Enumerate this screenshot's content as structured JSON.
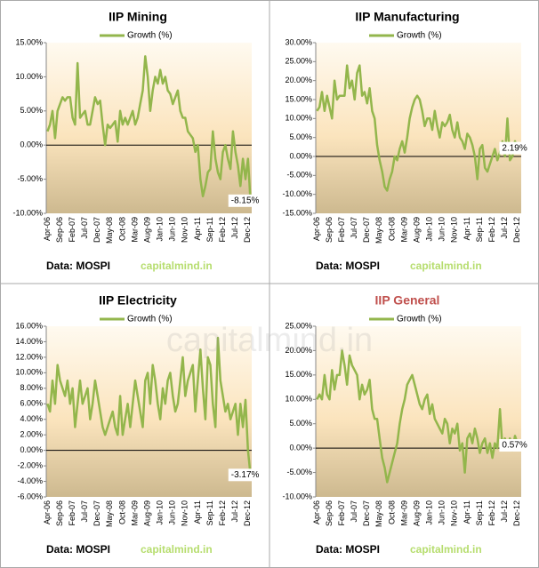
{
  "watermark": "capitalmind.in",
  "chart_data": [
    {
      "type": "line",
      "title": "IIP Mining",
      "title_color": "#000000",
      "source": "Data: MOSPI",
      "brand": "capitalmind.in",
      "annotation": "-8.15%",
      "categories": [
        "Apr-06",
        null,
        null,
        null,
        null,
        "Sep-06",
        null,
        null,
        null,
        null,
        "Feb-07",
        null,
        null,
        null,
        null,
        "Jul-07",
        null,
        null,
        null,
        null,
        "Dec-07",
        null,
        null,
        null,
        null,
        "May-08",
        null,
        null,
        null,
        null,
        "Oct-08",
        null,
        null,
        null,
        null,
        "Mar-09",
        null,
        null,
        null,
        null,
        "Aug-09",
        null,
        null,
        null,
        null,
        "Jan-10",
        null,
        null,
        null,
        null,
        "Jun-10",
        null,
        null,
        null,
        null,
        "Nov-10",
        null,
        null,
        null,
        null,
        "Apr-11",
        null,
        null,
        null,
        null,
        "Sep-11",
        null,
        null,
        null,
        null,
        "Feb-12",
        null,
        null,
        null,
        null,
        "Jul-12",
        null,
        null,
        null,
        null,
        "Dec-12",
        null
      ],
      "series": [
        {
          "name": "Growth (%)",
          "color": "#93b64c",
          "values": [
            2,
            3,
            5,
            1,
            5,
            6,
            7,
            6.5,
            7,
            7,
            4,
            3,
            12,
            4,
            4.5,
            5,
            3,
            3,
            5,
            7,
            6,
            6.5,
            3,
            0,
            3,
            2.5,
            3,
            3.5,
            0.5,
            5,
            3,
            4,
            3,
            4,
            5,
            3,
            4,
            6,
            8,
            13,
            10,
            5,
            8,
            10,
            9,
            11,
            9,
            10,
            8,
            7.5,
            6,
            7,
            8,
            5,
            4,
            4,
            2,
            1.5,
            1,
            -1,
            0,
            -5,
            -7.5,
            -6,
            -4,
            -3.5,
            2,
            -2,
            -4,
            -5,
            -1,
            0,
            -2,
            -3.5,
            2,
            -1,
            -3,
            -6,
            -2,
            -5,
            -2,
            -8.15
          ]
        }
      ],
      "ylim": [
        -10,
        15
      ],
      "yticks": [
        {
          "value": -10,
          "label": "-10.00%"
        },
        {
          "value": -5,
          "label": "-5.00%"
        },
        {
          "value": 0,
          "label": "0.00%"
        },
        {
          "value": 5,
          "label": "5.00%"
        },
        {
          "value": 10,
          "label": "10.00%"
        },
        {
          "value": 15,
          "label": "15.00%"
        }
      ],
      "grid": false
    },
    {
      "type": "line",
      "title": "IIP Manufacturing",
      "title_color": "#000000",
      "source": "Data: MOSPI",
      "brand": "capitalmind.in",
      "annotation": "2.19%",
      "categories": [
        "Apr-06",
        null,
        null,
        null,
        null,
        "Sep-06",
        null,
        null,
        null,
        null,
        "Feb-07",
        null,
        null,
        null,
        null,
        "Jul-07",
        null,
        null,
        null,
        null,
        "Dec-07",
        null,
        null,
        null,
        null,
        "May-08",
        null,
        null,
        null,
        null,
        "Oct-08",
        null,
        null,
        null,
        null,
        "Mar-09",
        null,
        null,
        null,
        null,
        "Aug-09",
        null,
        null,
        null,
        null,
        "Jan-10",
        null,
        null,
        null,
        null,
        "Jun-10",
        null,
        null,
        null,
        null,
        "Nov-10",
        null,
        null,
        null,
        null,
        "Apr-11",
        null,
        null,
        null,
        null,
        "Sep-11",
        null,
        null,
        null,
        null,
        "Feb-12",
        null,
        null,
        null,
        null,
        "Jul-12",
        null,
        null,
        null,
        null,
        "Dec-12",
        null
      ],
      "series": [
        {
          "name": "Growth (%)",
          "color": "#93b64c",
          "values": [
            12,
            13,
            17,
            12,
            16,
            13,
            10,
            20,
            15,
            16,
            16,
            16,
            24,
            18,
            20,
            15,
            22,
            24,
            16,
            17,
            14,
            18,
            12,
            10,
            3,
            -1,
            -4,
            -8,
            -9,
            -6,
            -4,
            0,
            -1,
            2,
            4,
            1,
            5,
            10,
            13,
            15,
            16,
            15,
            12,
            8,
            10,
            10,
            7,
            12,
            8,
            5,
            9,
            8,
            9,
            11,
            7,
            5,
            9,
            5,
            4,
            2,
            6,
            5,
            3,
            0,
            -6,
            2,
            3,
            -3,
            -4,
            -2,
            0,
            2,
            -1,
            1,
            4,
            0,
            10,
            -1,
            0,
            4,
            2,
            2.19
          ]
        }
      ],
      "ylim": [
        -15,
        30
      ],
      "yticks": [
        {
          "value": -15,
          "label": "-15.00%"
        },
        {
          "value": -10,
          "label": "-10.00%"
        },
        {
          "value": -5,
          "label": "-5.00%"
        },
        {
          "value": 0,
          "label": "0.00%"
        },
        {
          "value": 5,
          "label": "5.00%"
        },
        {
          "value": 10,
          "label": "10.00%"
        },
        {
          "value": 15,
          "label": "15.00%"
        },
        {
          "value": 20,
          "label": "20.00%"
        },
        {
          "value": 25,
          "label": "25.00%"
        },
        {
          "value": 30,
          "label": "30.00%"
        }
      ],
      "grid": false
    },
    {
      "type": "line",
      "title": "IIP Electricity",
      "title_color": "#000000",
      "source": "Data: MOSPI",
      "brand": "capitalmind.in",
      "annotation": "-3.17%",
      "categories": [
        "Apr-06",
        null,
        null,
        null,
        null,
        "Sep-06",
        null,
        null,
        null,
        null,
        "Feb-07",
        null,
        null,
        null,
        null,
        "Jul-07",
        null,
        null,
        null,
        null,
        "Dec-07",
        null,
        null,
        null,
        null,
        "May-08",
        null,
        null,
        null,
        null,
        "Oct-08",
        null,
        null,
        null,
        null,
        "Mar-09",
        null,
        null,
        null,
        null,
        "Aug-09",
        null,
        null,
        null,
        null,
        "Jan-10",
        null,
        null,
        null,
        null,
        "Jun-10",
        null,
        null,
        null,
        null,
        "Nov-10",
        null,
        null,
        null,
        null,
        "Apr-11",
        null,
        null,
        null,
        null,
        "Sep-11",
        null,
        null,
        null,
        null,
        "Feb-12",
        null,
        null,
        null,
        null,
        "Jul-12",
        null,
        null,
        null,
        null,
        "Dec-12",
        null
      ],
      "series": [
        {
          "name": "Growth (%)",
          "color": "#93b64c",
          "values": [
            6,
            5,
            9,
            6,
            11,
            9,
            8,
            7,
            9,
            6,
            8,
            3,
            6,
            9,
            6,
            7,
            8,
            4,
            6,
            9,
            7,
            5,
            3,
            2,
            3,
            4,
            5,
            3,
            2,
            7,
            2,
            4,
            6,
            3,
            6,
            9,
            7,
            5,
            3,
            9,
            10,
            6,
            11,
            9,
            6,
            4,
            8,
            6,
            9,
            10,
            7,
            5,
            6,
            9,
            12,
            7,
            9,
            10,
            11,
            5,
            9,
            13,
            8,
            4,
            12,
            11,
            6,
            3,
            14.5,
            9,
            7,
            5,
            6,
            4,
            5,
            6,
            2,
            6,
            3,
            6.5,
            0,
            -3.17
          ]
        }
      ],
      "ylim": [
        -6,
        16
      ],
      "yticks": [
        {
          "value": -6,
          "label": "-6.00%"
        },
        {
          "value": -4,
          "label": "-4.00%"
        },
        {
          "value": -2,
          "label": "-2.00%"
        },
        {
          "value": 0,
          "label": "0.00%"
        },
        {
          "value": 2,
          "label": "2.00%"
        },
        {
          "value": 4,
          "label": "4.00%"
        },
        {
          "value": 6,
          "label": "6.00%"
        },
        {
          "value": 8,
          "label": "8.00%"
        },
        {
          "value": 10,
          "label": "10.00%"
        },
        {
          "value": 12,
          "label": "12.00%"
        },
        {
          "value": 14,
          "label": "14.00%"
        },
        {
          "value": 16,
          "label": "16.00%"
        }
      ],
      "grid": false
    },
    {
      "type": "line",
      "title": "IIP General",
      "title_color": "#c0504d",
      "source": "Data: MOSPI",
      "brand": "capitalmind.in",
      "annotation": "0.57%",
      "categories": [
        "Apr-06",
        null,
        null,
        null,
        null,
        "Sep-06",
        null,
        null,
        null,
        null,
        "Feb-07",
        null,
        null,
        null,
        null,
        "Jul-07",
        null,
        null,
        null,
        null,
        "Dec-07",
        null,
        null,
        null,
        null,
        "May-08",
        null,
        null,
        null,
        null,
        "Oct-08",
        null,
        null,
        null,
        null,
        "Mar-09",
        null,
        null,
        null,
        null,
        "Aug-09",
        null,
        null,
        null,
        null,
        "Jan-10",
        null,
        null,
        null,
        null,
        "Jun-10",
        null,
        null,
        null,
        null,
        "Nov-10",
        null,
        null,
        null,
        null,
        "Apr-11",
        null,
        null,
        null,
        null,
        "Sep-11",
        null,
        null,
        null,
        null,
        "Feb-12",
        null,
        null,
        null,
        null,
        "Jul-12",
        null,
        null,
        null,
        null,
        "Dec-12",
        null
      ],
      "series": [
        {
          "name": "Growth (%)",
          "color": "#93b64c",
          "values": [
            10,
            11,
            10,
            15,
            11,
            10,
            16,
            12,
            15,
            15,
            20,
            17,
            13,
            19,
            17,
            16,
            15,
            10,
            13,
            11,
            12,
            14,
            8,
            6,
            6,
            2,
            -2,
            -4,
            -7,
            -5,
            -3,
            -1,
            1,
            5,
            8,
            10,
            13,
            14,
            15,
            13,
            11,
            9,
            8,
            10,
            11,
            7,
            9,
            6,
            5,
            4,
            3,
            6,
            5,
            1,
            4,
            3,
            5,
            -0.5,
            1,
            -5,
            2,
            3,
            1,
            4,
            2,
            -1,
            1,
            2,
            -1,
            1,
            -2,
            1,
            0,
            8,
            0,
            2,
            0,
            2,
            -0.5,
            2.5,
            1,
            0.57
          ]
        }
      ],
      "ylim": [
        -10,
        25
      ],
      "yticks": [
        {
          "value": -10,
          "label": "-10.00%"
        },
        {
          "value": -5,
          "label": "-5.00%"
        },
        {
          "value": 0,
          "label": "0.00%"
        },
        {
          "value": 5,
          "label": "5.00%"
        },
        {
          "value": 10,
          "label": "10.00%"
        },
        {
          "value": 15,
          "label": "15.00%"
        },
        {
          "value": 20,
          "label": "20.00%"
        },
        {
          "value": 25,
          "label": "25.00%"
        }
      ],
      "grid": false
    }
  ]
}
